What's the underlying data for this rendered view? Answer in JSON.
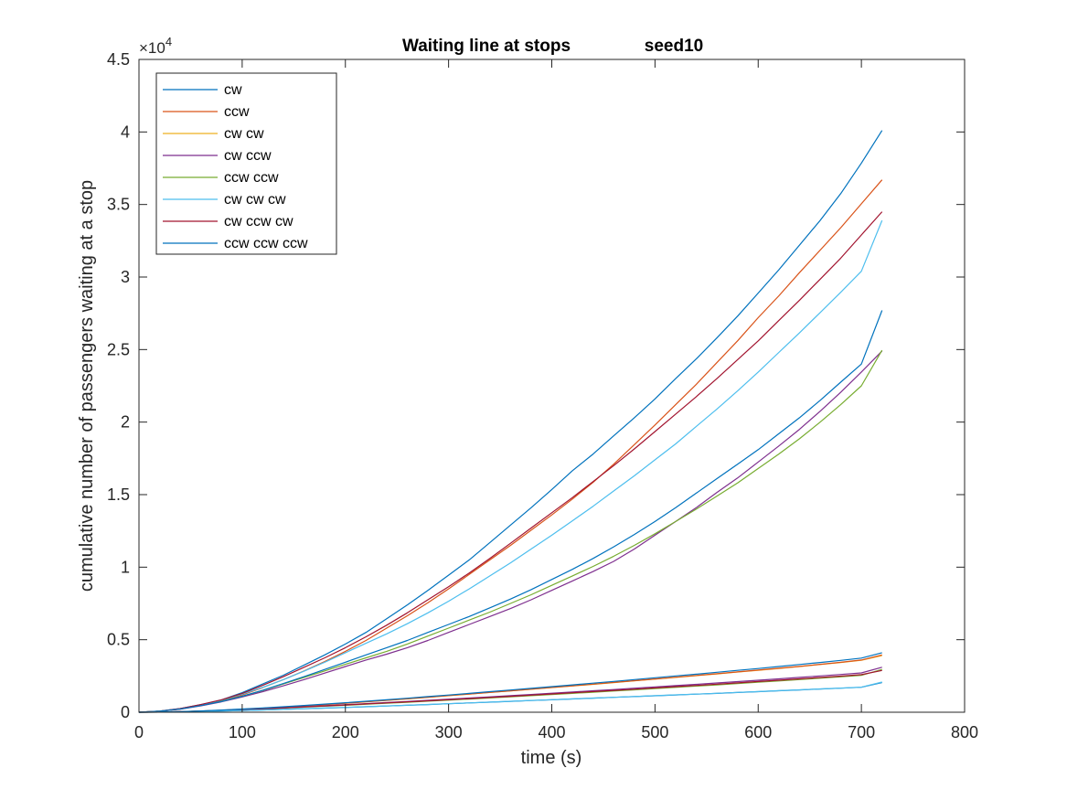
{
  "chart_data": {
    "type": "line",
    "title": "Waiting line at stops",
    "subtitle": "seed10",
    "xlabel": "time (s)",
    "ylabel": "cumulative number of passengers waiting at a stop",
    "y_exponent_base": "×10",
    "y_exponent_power": "4",
    "xlim": [
      0,
      800
    ],
    "ylim": [
      0,
      45000
    ],
    "x_ticks": [
      0,
      100,
      200,
      300,
      400,
      500,
      600,
      700,
      800
    ],
    "x_tick_labels": [
      "0",
      "100",
      "200",
      "300",
      "400",
      "500",
      "600",
      "700",
      "800"
    ],
    "y_ticks": [
      0,
      5000,
      10000,
      15000,
      20000,
      25000,
      30000,
      35000,
      40000,
      45000
    ],
    "y_tick_labels": [
      "0",
      "0.5",
      "1",
      "1.5",
      "2",
      "2.5",
      "3",
      "3.5",
      "4",
      "4.5"
    ],
    "grid": false,
    "legend_position": "top-left",
    "x": [
      0,
      20,
      40,
      60,
      80,
      100,
      120,
      140,
      160,
      180,
      200,
      220,
      240,
      260,
      280,
      300,
      320,
      340,
      360,
      380,
      400,
      420,
      440,
      460,
      480,
      500,
      520,
      540,
      560,
      580,
      600,
      620,
      640,
      660,
      680,
      700,
      720
    ],
    "series": [
      {
        "name": "cw",
        "color": "#0072BD",
        "values": [
          0,
          80,
          250,
          520,
          850,
          1350,
          1950,
          2550,
          3250,
          3950,
          4700,
          5500,
          6450,
          7400,
          8400,
          9450,
          10500,
          11700,
          12900,
          14100,
          15350,
          16650,
          17800,
          19050,
          20300,
          21600,
          23000,
          24350,
          25800,
          27300,
          28900,
          30500,
          32200,
          33900,
          35750,
          37850,
          40100
        ]
      },
      {
        "name": "ccw",
        "color": "#D95319",
        "values": [
          0,
          70,
          230,
          480,
          780,
          1200,
          1700,
          2250,
          2850,
          3500,
          4200,
          4950,
          5800,
          6650,
          7550,
          8500,
          9500,
          10500,
          11500,
          12550,
          13600,
          14700,
          15850,
          17100,
          18450,
          19800,
          21200,
          22600,
          24100,
          25600,
          27200,
          28700,
          30300,
          31850,
          33400,
          35050,
          36700
        ]
      },
      {
        "name": "cw cw",
        "color": "#EDB120",
        "values": [
          0,
          10,
          40,
          80,
          130,
          200,
          270,
          350,
          440,
          530,
          620,
          720,
          820,
          920,
          1030,
          1140,
          1250,
          1360,
          1470,
          1580,
          1700,
          1810,
          1920,
          2040,
          2160,
          2280,
          2400,
          2520,
          2640,
          2770,
          2890,
          3020,
          3150,
          3290,
          3430,
          3580,
          3900
        ]
      },
      {
        "name": "cw ccw",
        "color": "#7E2F8E",
        "values": [
          0,
          65,
          210,
          440,
          720,
          1050,
          1420,
          1820,
          2250,
          2700,
          3150,
          3600,
          4000,
          4450,
          4950,
          5500,
          6050,
          6600,
          7150,
          7750,
          8400,
          9050,
          9700,
          10400,
          11250,
          12200,
          13150,
          14100,
          15150,
          16150,
          17250,
          18350,
          19500,
          20750,
          22050,
          23450,
          24900
        ]
      },
      {
        "name": "ccw ccw",
        "color": "#77AC30",
        "values": [
          0,
          70,
          225,
          470,
          760,
          1100,
          1500,
          1950,
          2400,
          2850,
          3300,
          3750,
          4200,
          4700,
          5250,
          5800,
          6350,
          6900,
          7500,
          8100,
          8750,
          9400,
          10050,
          10750,
          11500,
          12300,
          13150,
          14000,
          14900,
          15800,
          16800,
          17800,
          18850,
          20000,
          21200,
          22500,
          24950
        ]
      },
      {
        "name": "cw cw cw",
        "color": "#4DBEEE",
        "values": [
          0,
          75,
          245,
          510,
          830,
          1250,
          1720,
          2250,
          2830,
          3450,
          4100,
          4750,
          5400,
          6100,
          6850,
          7650,
          8500,
          9400,
          10300,
          11250,
          12200,
          13200,
          14200,
          15250,
          16300,
          17400,
          18500,
          19700,
          20900,
          22150,
          23450,
          24800,
          26150,
          27550,
          28950,
          30400,
          33900
        ]
      },
      {
        "name": "cw ccw cw",
        "color": "#A2142F",
        "values": [
          0,
          78,
          255,
          530,
          860,
          1300,
          1850,
          2450,
          3100,
          3750,
          4450,
          5200,
          6000,
          6850,
          7750,
          8650,
          9600,
          10600,
          11650,
          12700,
          13750,
          14800,
          15900,
          17000,
          18150,
          19350,
          20550,
          21750,
          23000,
          24300,
          25600,
          27000,
          28400,
          29850,
          31300,
          32900,
          34500
        ]
      },
      {
        "name": "ccw ccw ccw",
        "color": "#0072BD",
        "values": [
          0,
          68,
          220,
          460,
          740,
          1100,
          1520,
          1980,
          2450,
          2950,
          3450,
          3950,
          4450,
          4950,
          5500,
          6050,
          6600,
          7200,
          7800,
          8450,
          9150,
          9850,
          10600,
          11400,
          12250,
          13150,
          14100,
          15100,
          16100,
          17100,
          18100,
          19200,
          20300,
          21500,
          22750,
          24000,
          27700
        ]
      },
      {
        "color": "#D95319",
        "values": [
          0,
          11,
          42,
          85,
          140,
          205,
          275,
          355,
          445,
          535,
          625,
          725,
          825,
          925,
          1035,
          1145,
          1255,
          1365,
          1475,
          1590,
          1705,
          1820,
          1935,
          2055,
          2175,
          2295,
          2415,
          2535,
          2655,
          2780,
          2905,
          3030,
          3160,
          3300,
          3440,
          3600,
          3950
        ]
      },
      {
        "color": "#77AC30",
        "values": [
          0,
          9,
          35,
          70,
          115,
          170,
          225,
          285,
          350,
          415,
          480,
          550,
          620,
          690,
          760,
          835,
          910,
          985,
          1060,
          1140,
          1220,
          1300,
          1380,
          1460,
          1545,
          1630,
          1715,
          1800,
          1885,
          1975,
          2065,
          2155,
          2250,
          2345,
          2440,
          2540,
          2950
        ]
      },
      {
        "color": "#7E2F8E",
        "values": [
          0,
          10,
          38,
          75,
          125,
          185,
          245,
          310,
          380,
          450,
          520,
          595,
          670,
          745,
          820,
          900,
          980,
          1060,
          1140,
          1225,
          1310,
          1395,
          1480,
          1565,
          1655,
          1745,
          1835,
          1925,
          2015,
          2110,
          2205,
          2300,
          2400,
          2500,
          2600,
          2710,
          3100
        ]
      },
      {
        "color": "#A2142F",
        "values": [
          0,
          9,
          36,
          72,
          120,
          178,
          236,
          298,
          364,
          432,
          500,
          572,
          645,
          718,
          790,
          865,
          940,
          1018,
          1096,
          1176,
          1258,
          1340,
          1422,
          1505,
          1590,
          1676,
          1762,
          1848,
          1936,
          2025,
          2115,
          2205,
          2298,
          2392,
          2488,
          2590,
          2880
        ]
      },
      {
        "color": "#0072BD",
        "values": [
          0,
          7,
          25,
          50,
          80,
          115,
          155,
          195,
          240,
          285,
          330,
          380,
          430,
          480,
          530,
          585,
          640,
          695,
          750,
          805,
          860,
          915,
          970,
          1025,
          1080,
          1135,
          1190,
          1245,
          1300,
          1360,
          1420,
          1480,
          1540,
          1600,
          1660,
          1720,
          2050
        ]
      },
      {
        "color": "#4DBEEE",
        "values": [
          0,
          7,
          26,
          52,
          83,
          118,
          158,
          198,
          243,
          288,
          335,
          385,
          435,
          485,
          537,
          590,
          645,
          700,
          755,
          810,
          865,
          920,
          975,
          1030,
          1085,
          1140,
          1195,
          1250,
          1305,
          1365,
          1425,
          1485,
          1545,
          1605,
          1665,
          1725,
          2080
        ]
      },
      {
        "color": "#0072BD",
        "values": [
          0,
          12,
          45,
          90,
          150,
          220,
          290,
          375,
          465,
          560,
          655,
          755,
          860,
          965,
          1075,
          1185,
          1300,
          1415,
          1530,
          1645,
          1765,
          1885,
          2005,
          2125,
          2250,
          2375,
          2500,
          2625,
          2755,
          2885,
          3015,
          3150,
          3290,
          3430,
          3575,
          3730,
          4100
        ]
      }
    ]
  }
}
